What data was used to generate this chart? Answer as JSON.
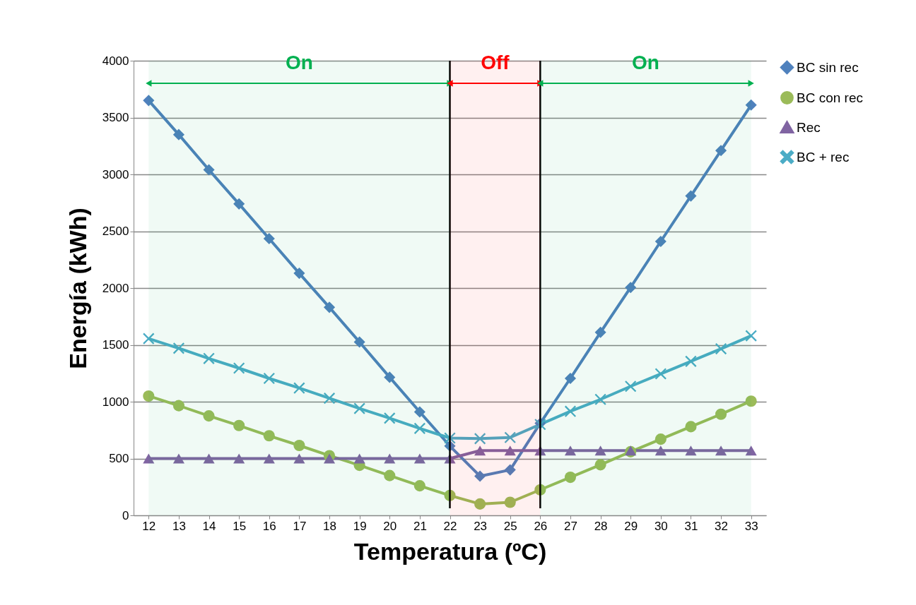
{
  "chart_data": {
    "type": "line",
    "xlabel": "Temperatura (ºC)",
    "ylabel": "Energía (kWh)",
    "categories": [
      "12",
      "13",
      "14",
      "15",
      "16",
      "17",
      "18",
      "19",
      "20",
      "21",
      "22",
      "23",
      "25",
      "26",
      "27",
      "28",
      "29",
      "30",
      "31",
      "32",
      "33"
    ],
    "ylim": [
      0,
      4000
    ],
    "yticks": [
      0,
      500,
      1000,
      1500,
      2000,
      2500,
      3000,
      3500,
      4000
    ],
    "grid": "y",
    "legend": "right",
    "line_style": "solid",
    "series": [
      {
        "name": "BC sin rec",
        "color": "#4f81bd",
        "marker": "diamond",
        "values": [
          3650,
          3350,
          3040,
          2740,
          2435,
          2130,
          1830,
          1525,
          1215,
          910,
          610,
          345,
          400,
          810,
          1205,
          1610,
          2005,
          2410,
          2810,
          3210,
          3610
        ]
      },
      {
        "name": "BC con rec",
        "color": "#9bbb59",
        "marker": "circle",
        "values": [
          1050,
          965,
          875,
          790,
          700,
          615,
          525,
          440,
          350,
          260,
          175,
          100,
          115,
          225,
          335,
          445,
          560,
          670,
          780,
          890,
          1005
        ]
      },
      {
        "name": "Rec",
        "color": "#8064a2",
        "marker": "triangle",
        "values": [
          500,
          500,
          500,
          500,
          500,
          500,
          500,
          500,
          500,
          500,
          500,
          570,
          570,
          570,
          570,
          570,
          570,
          570,
          570,
          570,
          570
        ]
      },
      {
        "name": "BC + rec",
        "color": "#4bacc6",
        "marker": "cross",
        "values": [
          1555,
          1470,
          1380,
          1295,
          1205,
          1120,
          1030,
          940,
          855,
          765,
          680,
          675,
          685,
          800,
          915,
          1020,
          1135,
          1245,
          1355,
          1465,
          1580
        ]
      }
    ],
    "ref_lines": [
      {
        "axis": "x",
        "value": "22",
        "color": "#000000"
      },
      {
        "axis": "x",
        "value": "26",
        "color": "#000000"
      }
    ],
    "bands": [
      {
        "axis": "x",
        "from": "12",
        "to": "22",
        "label": "On",
        "color": "#00b050"
      },
      {
        "axis": "x",
        "from": "22",
        "to": "26",
        "label": "Off",
        "color": "#ff0000"
      },
      {
        "axis": "x",
        "from": "26",
        "to": "33",
        "label": "On",
        "color": "#00b050"
      }
    ]
  }
}
